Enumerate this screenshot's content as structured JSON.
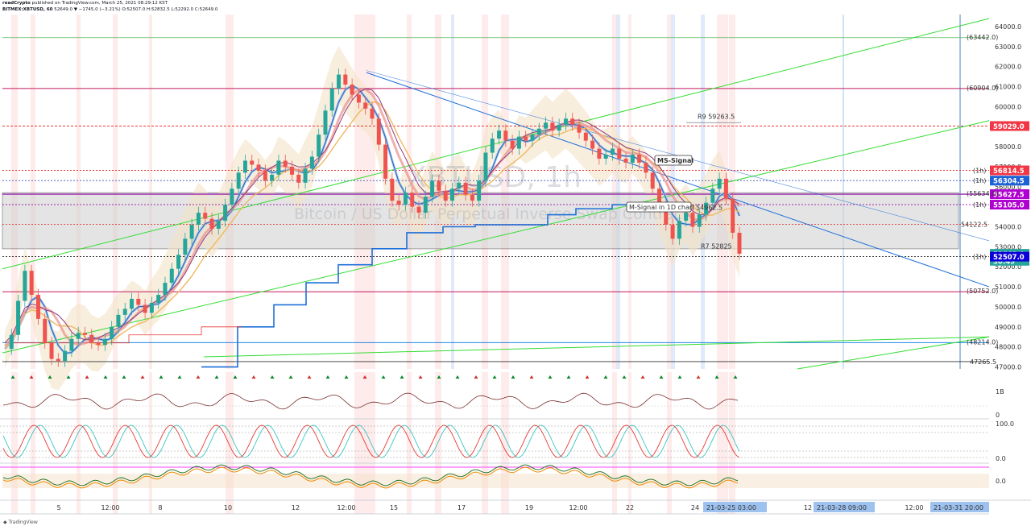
{
  "header": {
    "line1_user": "readCrypto",
    "line1_rest": "published on TradingView.com, March 25, 2021 08:29:12 KST",
    "line2_symbol": "BITMEX:XBTUSD, 60",
    "line2_rest": "52649.0 ▼ −1745.0 (−3.21%) O:52507.0 H:52832.5 L:52292.0 C:52649.0"
  },
  "watermark": {
    "symbol": "XBTUSD, 1h",
    "name": "Bitcoin / US Dollar Perpetual Inverse Swap Contract"
  },
  "footer": {
    "logo": "TradingView"
  },
  "colors": {
    "up": "#26a69a",
    "down": "#ef5350",
    "price_badge_red": "#f23645",
    "price_badge_teal": "#26a69a",
    "blue": "#0c00d8",
    "purple": "#b000d0",
    "green_channel": "#33dd33",
    "blue_line": "#1e6fd9"
  },
  "chart_data": {
    "type": "line",
    "title": "XBTUSD, 1h",
    "price_axis": {
      "ticks": [
        "64000.0",
        "63000.0",
        "62000.0",
        "61000.0",
        "60000.0",
        "59000.0",
        "58000.0",
        "57000.0",
        "56000.0",
        "55000.0",
        "54000.0",
        "53000.0",
        "52000.0",
        "51000.0",
        "50000.0",
        "49000.0",
        "48000.0",
        "47000.0"
      ],
      "ylim": [
        46900,
        64600
      ]
    },
    "time_axis": {
      "ticks": [
        "5",
        "12:00",
        "8",
        "10",
        "12",
        "12:00",
        "15",
        "17",
        "19",
        "12:00",
        "22",
        "24",
        "12",
        "12:00"
      ],
      "highlighted": [
        "21-03-25   03:00",
        "21-03-28   09:00",
        "21-03-31   20:00"
      ]
    },
    "price_badges": [
      {
        "label": "59029.0",
        "value": 59029.0,
        "color": "#f23645"
      },
      {
        "label": "56814.5",
        "value": 56814.5,
        "color": "#f23645"
      },
      {
        "label": "56304.5",
        "value": 56304.5,
        "color": "#1e63d6"
      },
      {
        "label": "55627.5",
        "value": 55627.5,
        "color": "#b000d0"
      },
      {
        "label": "55105.0",
        "value": 55105.0,
        "color": "#b000d0"
      },
      {
        "label": "52649.0",
        "value": 52649.0,
        "color": "#26a69a"
      },
      {
        "label": "30:49",
        "value": 52300,
        "color": "#26a69a"
      },
      {
        "label": "52507.0",
        "value": 52507.0,
        "color": "#0c00d8"
      }
    ],
    "level_labels": [
      {
        "text": "R9 59263.5",
        "value": 59263.5
      },
      {
        "text": "R7 52825",
        "value": 52825
      },
      {
        "text": "54122.5",
        "value": 54122.5
      },
      {
        "text": "47265.5",
        "value": 47265.5
      },
      {
        "text": "54962.5",
        "value": 54962.5
      }
    ],
    "tf_tags": [
      {
        "text": "(1h)",
        "value": 56814.5
      },
      {
        "text": "(1h)",
        "value": 56304.5
      },
      {
        "text": "(1h)",
        "value": 55105.0
      },
      {
        "text": "(1h)",
        "value": 52507.0
      }
    ],
    "small_tags": [
      "(63442.0)",
      "(60904.0)",
      "(55634.0)",
      "(50752.0)",
      "(48214.0)"
    ],
    "annotations": [
      "MS-Signal",
      "M-Signal in 1D chart"
    ],
    "series": [
      {
        "name": "close",
        "values": [
          47900,
          48600,
          50300,
          51800,
          50600,
          49400,
          48200,
          47400,
          47300,
          47800,
          48400,
          48700,
          48600,
          48200,
          48100,
          48400,
          49000,
          49600,
          49900,
          50400,
          50100,
          49700,
          50200,
          50600,
          51200,
          51900,
          52600,
          53400,
          54100,
          54700,
          54400,
          53900,
          54300,
          55100,
          55900,
          56700,
          57300,
          57100,
          56800,
          56300,
          56600,
          57300,
          57000,
          56600,
          56200,
          56900,
          57500,
          58600,
          59800,
          60900,
          61600,
          61100,
          60600,
          60200,
          59900,
          59400,
          58100,
          56400,
          55300,
          55100,
          55700,
          55000,
          54700,
          55500,
          56300,
          55800,
          55300,
          55900,
          56200,
          55600,
          55300,
          56300,
          57700,
          58400,
          58800,
          58300,
          57900,
          58500,
          58300,
          58600,
          58900,
          59200,
          58800,
          59100,
          59400,
          59100,
          58700,
          58300,
          57900,
          57400,
          57600,
          57900,
          57400,
          57200,
          57600,
          57200,
          56700,
          55900,
          55000,
          54100,
          53400,
          54300,
          54700,
          54000,
          54600,
          55200,
          55900,
          56400,
          55400,
          53700,
          52650
        ]
      },
      {
        "name": "volume_osc_ticks",
        "values": []
      }
    ],
    "sub_panels": [
      {
        "name": "volume",
        "ticks": [
          "1B",
          "0"
        ]
      },
      {
        "name": "stochastic",
        "ticks": [
          "100.0",
          "0.0"
        ]
      },
      {
        "name": "momentum",
        "ticks": [
          "0.0"
        ]
      }
    ]
  }
}
